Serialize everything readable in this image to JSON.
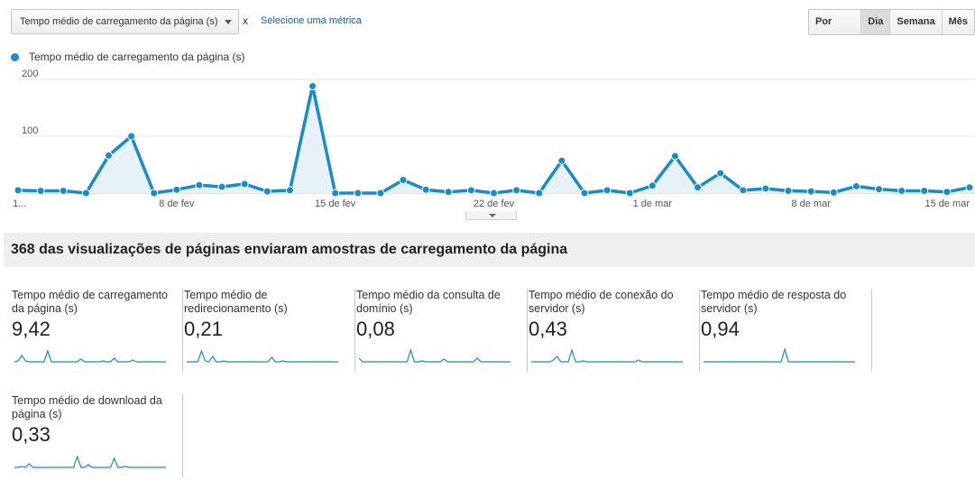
{
  "toolbar": {
    "metric_select": "Tempo médio de carregamento da página (s)",
    "remove_x": "x",
    "select_metric_link": "Selecione uma métrica",
    "granularity": [
      "Por hora",
      "Dia",
      "Semana",
      "Mês"
    ],
    "granularity_active": "Dia"
  },
  "legend": {
    "label": "Tempo médio de carregamento da página (s)",
    "color": "#1a8bc8"
  },
  "chart_data": {
    "type": "area",
    "series": [
      {
        "name": "Tempo médio de carregamento da página (s)",
        "values": [
          5,
          4,
          4,
          0,
          66,
          100,
          0,
          6,
          14,
          11,
          16,
          3,
          5,
          188,
          0,
          0,
          0,
          23,
          6,
          2,
          5,
          0,
          5,
          0,
          57,
          0,
          5,
          0,
          13,
          65,
          10,
          35,
          5,
          8,
          4,
          3,
          1,
          12,
          7,
          4,
          4,
          2,
          10
        ]
      }
    ],
    "x_tick_labels": [
      {
        "index": 0,
        "label": "1..."
      },
      {
        "index": 7,
        "label": "8 de fev"
      },
      {
        "index": 14,
        "label": "15 de fev"
      },
      {
        "index": 21,
        "label": "22 de fev"
      },
      {
        "index": 28,
        "label": "1 de mar"
      },
      {
        "index": 35,
        "label": "8 de mar"
      },
      {
        "index": 42,
        "label": "15 de mar"
      }
    ],
    "y_tick_labels": [
      "200",
      "100"
    ],
    "ylim": [
      0,
      200
    ],
    "grid": true,
    "color": "#1a8bc8"
  },
  "summary": {
    "title": "368 das visualizações de páginas enviaram amostras de carregamento da página"
  },
  "cards": [
    {
      "title": "Tempo médio de carregamento da página (s)",
      "value": "9,42",
      "spark": [
        2,
        3,
        9,
        3,
        2,
        2,
        2,
        2,
        2,
        14,
        2,
        2,
        2,
        2,
        2,
        2,
        2,
        2,
        5,
        2,
        2,
        2,
        2,
        2,
        3,
        2,
        2,
        6,
        2,
        2,
        2,
        2,
        4,
        2,
        2,
        2,
        2,
        2,
        2,
        2,
        2,
        2
      ]
    },
    {
      "title": "Tempo médio de redirecionamento (s)",
      "value": "0,21",
      "spark": [
        2,
        2,
        2,
        2,
        14,
        3,
        2,
        8,
        2,
        2,
        3,
        2,
        2,
        2,
        2,
        2,
        2,
        2,
        2,
        2,
        2,
        2,
        2,
        7,
        2,
        2,
        3,
        2,
        2,
        2,
        2,
        2,
        2,
        2,
        2,
        2,
        2,
        2,
        2,
        2,
        2,
        2
      ]
    },
    {
      "title": "Tempo médio da consulta de domínio (s)",
      "value": "0,08",
      "spark": [
        6,
        2,
        2,
        2,
        2,
        2,
        2,
        2,
        2,
        2,
        2,
        2,
        2,
        2,
        15,
        2,
        2,
        3,
        2,
        2,
        2,
        2,
        2,
        5,
        2,
        2,
        2,
        2,
        2,
        2,
        2,
        2,
        6,
        2,
        2,
        2,
        2,
        2,
        2,
        2,
        2,
        2
      ]
    },
    {
      "title": "Tempo médio de conexão do servidor (s)",
      "value": "0,43",
      "spark": [
        2,
        2,
        2,
        2,
        2,
        2,
        4,
        8,
        2,
        2,
        2,
        15,
        2,
        2,
        3,
        2,
        2,
        2,
        2,
        2,
        2,
        2,
        2,
        2,
        2,
        2,
        2,
        2,
        2,
        4,
        2,
        2,
        2,
        2,
        2,
        2,
        2,
        2,
        2,
        2,
        2,
        2
      ]
    },
    {
      "title": "Tempo médio de resposta do servidor (s)",
      "value": "0,94",
      "spark": [
        2,
        2,
        2,
        2,
        2,
        2,
        2,
        2,
        2,
        2,
        2,
        2,
        2,
        2,
        2,
        2,
        2,
        2,
        2,
        2,
        2,
        2,
        16,
        2,
        2,
        2,
        2,
        2,
        2,
        2,
        2,
        2,
        2,
        2,
        2,
        2,
        2,
        2,
        2,
        2,
        2,
        2
      ]
    },
    {
      "title": "Tempo médio de download da página (s)",
      "value": "0,33",
      "spark": [
        2,
        2,
        3,
        2,
        6,
        2,
        2,
        2,
        2,
        2,
        2,
        2,
        2,
        2,
        2,
        2,
        2,
        14,
        2,
        2,
        5,
        2,
        2,
        2,
        2,
        2,
        2,
        12,
        2,
        2,
        3,
        2,
        2,
        2,
        2,
        2,
        2,
        2,
        2,
        2,
        2,
        2
      ]
    }
  ]
}
